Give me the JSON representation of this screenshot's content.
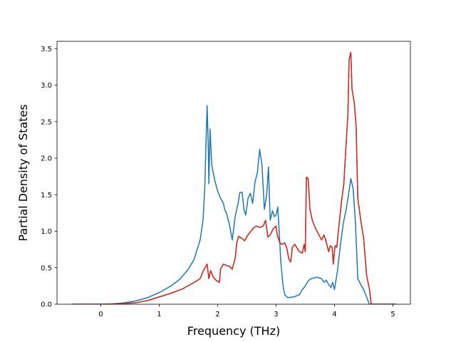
{
  "chart_data": {
    "type": "line",
    "title": "",
    "xlabel": "Frequency (THz)",
    "ylabel": "Partial Density of States",
    "xlim": [
      -0.75,
      5.3
    ],
    "ylim": [
      0,
      3.6
    ],
    "xticks": [
      0,
      1,
      2,
      3,
      4,
      5
    ],
    "xtick_labels": [
      "0",
      "1",
      "2",
      "3",
      "4",
      "5"
    ],
    "yticks": [
      0.0,
      0.5,
      1.0,
      1.5,
      2.0,
      2.5,
      3.0,
      3.5
    ],
    "ytick_labels": [
      "0.0",
      "0.5",
      "1.0",
      "1.5",
      "2.0",
      "2.5",
      "3.0",
      "3.5"
    ],
    "grid": false,
    "legend": "none",
    "series": [
      {
        "color": "#1f77b4",
        "points": [
          [
            -0.48,
            0.0
          ],
          [
            0.0,
            0.0
          ],
          [
            0.2,
            0.005
          ],
          [
            0.4,
            0.02
          ],
          [
            0.6,
            0.045
          ],
          [
            0.8,
            0.09
          ],
          [
            1.0,
            0.16
          ],
          [
            1.2,
            0.25
          ],
          [
            1.35,
            0.34
          ],
          [
            1.5,
            0.48
          ],
          [
            1.6,
            0.62
          ],
          [
            1.7,
            0.88
          ],
          [
            1.75,
            1.15
          ],
          [
            1.78,
            1.6
          ],
          [
            1.8,
            2.2
          ],
          [
            1.82,
            2.72
          ],
          [
            1.84,
            2.15
          ],
          [
            1.85,
            1.65
          ],
          [
            1.87,
            2.4
          ],
          [
            1.9,
            1.9
          ],
          [
            1.95,
            1.7
          ],
          [
            2.0,
            1.55
          ],
          [
            2.05,
            1.45
          ],
          [
            2.1,
            1.38
          ],
          [
            2.12,
            1.3
          ],
          [
            2.15,
            1.25
          ],
          [
            2.2,
            1.1
          ],
          [
            2.25,
            0.88
          ],
          [
            2.3,
            1.2
          ],
          [
            2.35,
            1.38
          ],
          [
            2.38,
            1.53
          ],
          [
            2.42,
            1.53
          ],
          [
            2.45,
            1.3
          ],
          [
            2.48,
            1.22
          ],
          [
            2.52,
            1.45
          ],
          [
            2.56,
            1.52
          ],
          [
            2.6,
            1.38
          ],
          [
            2.64,
            1.68
          ],
          [
            2.68,
            1.8
          ],
          [
            2.72,
            2.12
          ],
          [
            2.76,
            1.9
          ],
          [
            2.8,
            1.3
          ],
          [
            2.84,
            1.5
          ],
          [
            2.87,
            1.88
          ],
          [
            2.9,
            1.15
          ],
          [
            2.94,
            1.28
          ],
          [
            2.97,
            1.2
          ],
          [
            3.0,
            1.22
          ],
          [
            3.03,
            1.33
          ],
          [
            3.05,
            1.05
          ],
          [
            3.08,
            0.6
          ],
          [
            3.12,
            0.25
          ],
          [
            3.15,
            0.13
          ],
          [
            3.2,
            0.09
          ],
          [
            3.3,
            0.1
          ],
          [
            3.4,
            0.13
          ],
          [
            3.45,
            0.2
          ],
          [
            3.5,
            0.25
          ],
          [
            3.55,
            0.32
          ],
          [
            3.6,
            0.35
          ],
          [
            3.7,
            0.37
          ],
          [
            3.78,
            0.35
          ],
          [
            3.82,
            0.3
          ],
          [
            3.86,
            0.33
          ],
          [
            3.9,
            0.27
          ],
          [
            3.94,
            0.23
          ],
          [
            3.97,
            0.3
          ],
          [
            4.0,
            0.2
          ],
          [
            4.05,
            0.45
          ],
          [
            4.1,
            0.8
          ],
          [
            4.15,
            1.1
          ],
          [
            4.2,
            1.3
          ],
          [
            4.25,
            1.55
          ],
          [
            4.28,
            1.72
          ],
          [
            4.32,
            1.58
          ],
          [
            4.36,
            1.1
          ],
          [
            4.4,
            0.35
          ],
          [
            4.45,
            0.27
          ],
          [
            4.5,
            0.2
          ],
          [
            4.55,
            0.1
          ],
          [
            4.6,
            0.0
          ],
          [
            5.05,
            0.0
          ]
        ]
      },
      {
        "color": "#2ca02c",
        "points": [
          [
            -0.48,
            0.0
          ],
          [
            0.0,
            0.0
          ],
          [
            0.3,
            0.005
          ],
          [
            0.6,
            0.02
          ],
          [
            0.8,
            0.05
          ],
          [
            1.0,
            0.1
          ],
          [
            1.2,
            0.15
          ],
          [
            1.4,
            0.21
          ],
          [
            1.6,
            0.3
          ],
          [
            1.7,
            0.35
          ],
          [
            1.75,
            0.45
          ],
          [
            1.8,
            0.52
          ],
          [
            1.82,
            0.55
          ],
          [
            1.85,
            0.35
          ],
          [
            1.88,
            0.46
          ],
          [
            1.92,
            0.38
          ],
          [
            1.97,
            0.33
          ],
          [
            2.03,
            0.3
          ],
          [
            2.05,
            0.48
          ],
          [
            2.1,
            0.55
          ],
          [
            2.15,
            0.53
          ],
          [
            2.2,
            0.52
          ],
          [
            2.25,
            0.48
          ],
          [
            2.3,
            0.63
          ],
          [
            2.33,
            0.85
          ],
          [
            2.36,
            0.93
          ],
          [
            2.42,
            0.9
          ],
          [
            2.46,
            0.87
          ],
          [
            2.52,
            0.95
          ],
          [
            2.57,
            1.0
          ],
          [
            2.62,
            1.05
          ],
          [
            2.67,
            1.07
          ],
          [
            2.72,
            1.05
          ],
          [
            2.78,
            1.07
          ],
          [
            2.82,
            1.15
          ],
          [
            2.86,
            0.92
          ],
          [
            2.9,
            0.95
          ],
          [
            2.95,
            1.03
          ],
          [
            3.0,
            1.07
          ],
          [
            3.02,
            0.95
          ],
          [
            3.06,
            0.85
          ],
          [
            3.1,
            0.82
          ],
          [
            3.15,
            0.84
          ],
          [
            3.18,
            0.78
          ],
          [
            3.22,
            0.62
          ],
          [
            3.25,
            0.58
          ],
          [
            3.28,
            0.78
          ],
          [
            3.32,
            0.82
          ],
          [
            3.36,
            0.77
          ],
          [
            3.4,
            0.72
          ],
          [
            3.45,
            0.7
          ],
          [
            3.48,
            0.82
          ],
          [
            3.5,
            0.72
          ],
          [
            3.52,
            1.74
          ],
          [
            3.55,
            1.72
          ],
          [
            3.58,
            1.3
          ],
          [
            3.62,
            1.15
          ],
          [
            3.67,
            1.05
          ],
          [
            3.72,
            0.97
          ],
          [
            3.78,
            0.88
          ],
          [
            3.82,
            0.95
          ],
          [
            3.86,
            0.85
          ],
          [
            3.9,
            0.72
          ],
          [
            3.93,
            0.8
          ],
          [
            3.96,
            0.78
          ],
          [
            3.98,
            0.55
          ],
          [
            4.01,
            0.8
          ],
          [
            4.04,
            0.78
          ],
          [
            4.08,
            1.1
          ],
          [
            4.12,
            1.4
          ],
          [
            4.16,
            1.65
          ],
          [
            4.2,
            2.2
          ],
          [
            4.23,
            2.6
          ],
          [
            4.25,
            3.35
          ],
          [
            4.28,
            3.45
          ],
          [
            4.3,
            2.95
          ],
          [
            4.34,
            2.75
          ],
          [
            4.37,
            2.45
          ],
          [
            4.4,
            1.45
          ],
          [
            4.45,
            1.15
          ],
          [
            4.5,
            0.9
          ],
          [
            4.55,
            0.4
          ],
          [
            4.6,
            0.2
          ],
          [
            4.63,
            0.0
          ],
          [
            5.05,
            0.0
          ]
        ]
      },
      {
        "color": "#d62728",
        "points": [
          [
            -0.48,
            0.0
          ],
          [
            0.0,
            0.0
          ],
          [
            0.3,
            0.005
          ],
          [
            0.6,
            0.02
          ],
          [
            0.8,
            0.05
          ],
          [
            1.0,
            0.1
          ],
          [
            1.2,
            0.15
          ],
          [
            1.4,
            0.21
          ],
          [
            1.6,
            0.3
          ],
          [
            1.7,
            0.35
          ],
          [
            1.75,
            0.45
          ],
          [
            1.8,
            0.52
          ],
          [
            1.82,
            0.55
          ],
          [
            1.85,
            0.35
          ],
          [
            1.88,
            0.46
          ],
          [
            1.92,
            0.38
          ],
          [
            1.97,
            0.33
          ],
          [
            2.03,
            0.3
          ],
          [
            2.05,
            0.48
          ],
          [
            2.1,
            0.55
          ],
          [
            2.15,
            0.53
          ],
          [
            2.2,
            0.52
          ],
          [
            2.25,
            0.48
          ],
          [
            2.3,
            0.63
          ],
          [
            2.33,
            0.85
          ],
          [
            2.36,
            0.93
          ],
          [
            2.42,
            0.9
          ],
          [
            2.46,
            0.87
          ],
          [
            2.52,
            0.95
          ],
          [
            2.57,
            1.0
          ],
          [
            2.62,
            1.05
          ],
          [
            2.67,
            1.07
          ],
          [
            2.72,
            1.05
          ],
          [
            2.78,
            1.07
          ],
          [
            2.82,
            1.15
          ],
          [
            2.86,
            0.92
          ],
          [
            2.9,
            0.95
          ],
          [
            2.95,
            1.03
          ],
          [
            3.0,
            1.07
          ],
          [
            3.02,
            0.95
          ],
          [
            3.06,
            0.85
          ],
          [
            3.1,
            0.82
          ],
          [
            3.15,
            0.84
          ],
          [
            3.18,
            0.78
          ],
          [
            3.22,
            0.62
          ],
          [
            3.25,
            0.58
          ],
          [
            3.28,
            0.78
          ],
          [
            3.32,
            0.82
          ],
          [
            3.36,
            0.77
          ],
          [
            3.4,
            0.72
          ],
          [
            3.45,
            0.7
          ],
          [
            3.48,
            0.82
          ],
          [
            3.5,
            0.72
          ],
          [
            3.52,
            1.74
          ],
          [
            3.55,
            1.72
          ],
          [
            3.58,
            1.3
          ],
          [
            3.62,
            1.15
          ],
          [
            3.67,
            1.05
          ],
          [
            3.72,
            0.97
          ],
          [
            3.78,
            0.88
          ],
          [
            3.82,
            0.95
          ],
          [
            3.86,
            0.85
          ],
          [
            3.9,
            0.72
          ],
          [
            3.93,
            0.8
          ],
          [
            3.96,
            0.78
          ],
          [
            3.98,
            0.55
          ],
          [
            4.01,
            0.8
          ],
          [
            4.04,
            0.78
          ],
          [
            4.08,
            1.1
          ],
          [
            4.12,
            1.4
          ],
          [
            4.16,
            1.65
          ],
          [
            4.2,
            2.2
          ],
          [
            4.23,
            2.6
          ],
          [
            4.25,
            3.35
          ],
          [
            4.28,
            3.45
          ],
          [
            4.3,
            2.95
          ],
          [
            4.34,
            2.75
          ],
          [
            4.37,
            2.45
          ],
          [
            4.4,
            1.45
          ],
          [
            4.45,
            1.15
          ],
          [
            4.5,
            0.9
          ],
          [
            4.55,
            0.4
          ],
          [
            4.6,
            0.2
          ],
          [
            4.63,
            0.0
          ],
          [
            5.05,
            0.0
          ]
        ]
      }
    ]
  }
}
